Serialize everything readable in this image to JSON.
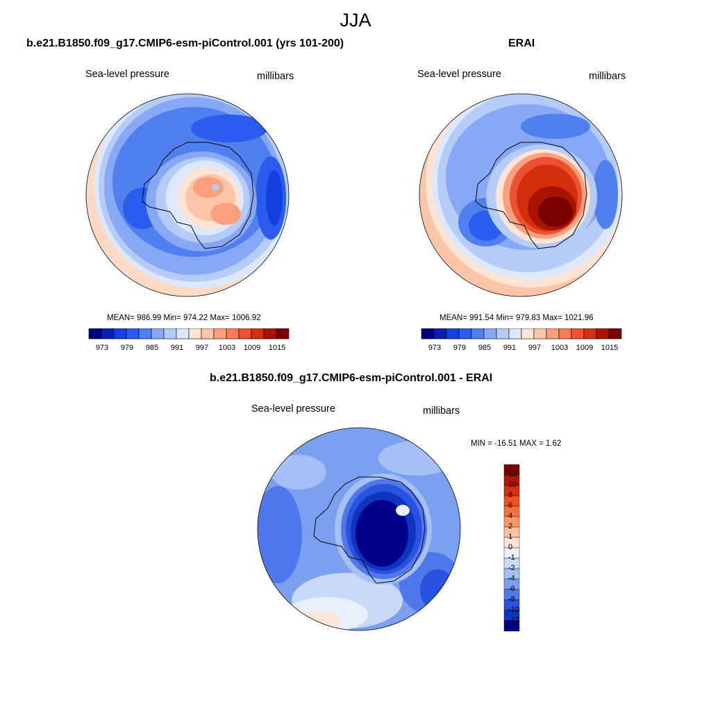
{
  "figure": {
    "title": "JJA"
  },
  "panels": [
    {
      "title": "b.e21.B1850.f09_g17.CMIP6-esm-piControl.001 (yrs 101-200)",
      "left_label": "Sea-level pressure",
      "right_label": "millibars",
      "stats": "MEAN= 986.99  Min= 974.22  Max= 1006.92",
      "colorbar_ticks": [
        "973",
        "979",
        "985",
        "991",
        "997",
        "1003",
        "1009",
        "1015"
      ]
    },
    {
      "title": "ERAI",
      "left_label": "Sea-level pressure",
      "right_label": "millibars",
      "stats": "MEAN= 991.54  Min= 979.83  Max= 1021.96",
      "colorbar_ticks": [
        "973",
        "979",
        "985",
        "991",
        "997",
        "1003",
        "1009",
        "1015"
      ]
    },
    {
      "title": "b.e21.B1850.f09_g17.CMIP6-esm-piControl.001 - ERAI",
      "left_label": "Sea-level pressure",
      "right_label": "millibars",
      "stats": "MIN = -16.51 MAX =   1.62",
      "colorbar_ticks": [
        "12",
        "10",
        "8",
        "6",
        "4",
        "2",
        "1",
        "0",
        "-1",
        "-2",
        "-4",
        "-6",
        "-8",
        "-10",
        "-12"
      ]
    }
  ],
  "colors": {
    "abs_scale": [
      "#00007f",
      "#0a1fb0",
      "#1440e0",
      "#2a5cf0",
      "#5080f0",
      "#86a8f5",
      "#b5ccf8",
      "#dce8fb",
      "#fde4d4",
      "#fcc5a8",
      "#fba07e",
      "#f77a55",
      "#ee5030",
      "#d4300f",
      "#a81400",
      "#7a0000"
    ],
    "diff_scale": [
      "#7a0000",
      "#b01600",
      "#d8300c",
      "#f25020",
      "#f87040",
      "#fb9868",
      "#fcc2a2",
      "#fde6d8",
      "#e8f0fc",
      "#c8daf8",
      "#a4c0f5",
      "#7ca0f0",
      "#5078ec",
      "#2a52e0",
      "#0f34c0",
      "#000088"
    ]
  }
}
